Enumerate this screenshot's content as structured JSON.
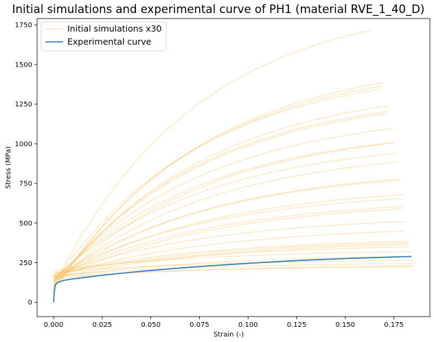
{
  "chart_data": {
    "type": "line",
    "title": "Initial simulations and experimental curve of PH1 (material RVE_1_40_D)",
    "xlabel": "Strain (-)",
    "ylabel": "Stress (MPa)",
    "xlim": [
      -0.0085,
      0.1935
    ],
    "ylim": [
      -90,
      1790
    ],
    "xticks": [
      0.0,
      0.025,
      0.05,
      0.075,
      0.1,
      0.125,
      0.15,
      0.175
    ],
    "xtick_labels": [
      "0.000",
      "0.025",
      "0.050",
      "0.075",
      "0.100",
      "0.125",
      "0.150",
      "0.175"
    ],
    "yticks": [
      0,
      250,
      500,
      750,
      1000,
      1250,
      1500,
      1750
    ],
    "ytick_labels": [
      "0",
      "250",
      "500",
      "750",
      "1000",
      "1250",
      "1500",
      "1750"
    ],
    "grid": false,
    "legend": {
      "position": "top-left",
      "entries": [
        {
          "label": "Initial simulations x30",
          "color": "#f5c46a"
        },
        {
          "label": "Experimental curve",
          "color": "#1f77b4"
        }
      ]
    },
    "colors": {
      "simulation": "#f5c46a",
      "experimental": "#1f77b4"
    },
    "series": [
      {
        "name": "Initial simulations x30",
        "kind": "simulations",
        "curves": [
          {
            "y0": 100,
            "ymax": 1720,
            "xmax": 0.164
          },
          {
            "y0": 60,
            "ymax": 1385,
            "xmax": 0.169
          },
          {
            "y0": 80,
            "ymax": 1365,
            "xmax": 0.169
          },
          {
            "y0": 120,
            "ymax": 1345,
            "xmax": 0.168
          },
          {
            "y0": 90,
            "ymax": 1240,
            "xmax": 0.172
          },
          {
            "y0": 110,
            "ymax": 1205,
            "xmax": 0.172
          },
          {
            "y0": 100,
            "ymax": 1190,
            "xmax": 0.171
          },
          {
            "y0": 130,
            "ymax": 1095,
            "xmax": 0.174
          },
          {
            "y0": 140,
            "ymax": 1010,
            "xmax": 0.175
          },
          {
            "y0": 100,
            "ymax": 1005,
            "xmax": 0.175
          },
          {
            "y0": 150,
            "ymax": 940,
            "xmax": 0.176
          },
          {
            "y0": 120,
            "ymax": 885,
            "xmax": 0.177
          },
          {
            "y0": 130,
            "ymax": 780,
            "xmax": 0.178
          },
          {
            "y0": 150,
            "ymax": 770,
            "xmax": 0.178
          },
          {
            "y0": 140,
            "ymax": 680,
            "xmax": 0.18
          },
          {
            "y0": 160,
            "ymax": 655,
            "xmax": 0.179
          },
          {
            "y0": 150,
            "ymax": 605,
            "xmax": 0.18
          },
          {
            "y0": 130,
            "ymax": 590,
            "xmax": 0.179
          },
          {
            "y0": 170,
            "ymax": 510,
            "xmax": 0.181
          },
          {
            "y0": 160,
            "ymax": 450,
            "xmax": 0.181
          },
          {
            "y0": 180,
            "ymax": 385,
            "xmax": 0.183
          },
          {
            "y0": 170,
            "ymax": 375,
            "xmax": 0.183
          },
          {
            "y0": 150,
            "ymax": 365,
            "xmax": 0.182
          },
          {
            "y0": 180,
            "ymax": 350,
            "xmax": 0.183
          },
          {
            "y0": 200,
            "ymax": 320,
            "xmax": 0.184
          },
          {
            "y0": 160,
            "ymax": 290,
            "xmax": 0.184
          },
          {
            "y0": 190,
            "ymax": 265,
            "xmax": 0.185
          },
          {
            "y0": 170,
            "ymax": 245,
            "xmax": 0.185
          },
          {
            "y0": 150,
            "ymax": 230,
            "xmax": 0.185
          },
          {
            "y0": 160,
            "ymax": 225,
            "xmax": 0.185
          }
        ]
      },
      {
        "name": "Experimental curve",
        "kind": "experimental",
        "x": [
          0.0,
          0.0003,
          0.0008,
          0.002,
          0.005,
          0.01,
          0.02,
          0.03,
          0.04,
          0.05,
          0.06,
          0.07,
          0.08,
          0.09,
          0.1,
          0.11,
          0.12,
          0.13,
          0.14,
          0.15,
          0.16,
          0.17,
          0.18,
          0.184
        ],
        "y": [
          0,
          60,
          110,
          125,
          138,
          148,
          163,
          177,
          190,
          201,
          211,
          221,
          230,
          238,
          246,
          253,
          260,
          266,
          271,
          276,
          280,
          284,
          288,
          289
        ]
      }
    ]
  }
}
